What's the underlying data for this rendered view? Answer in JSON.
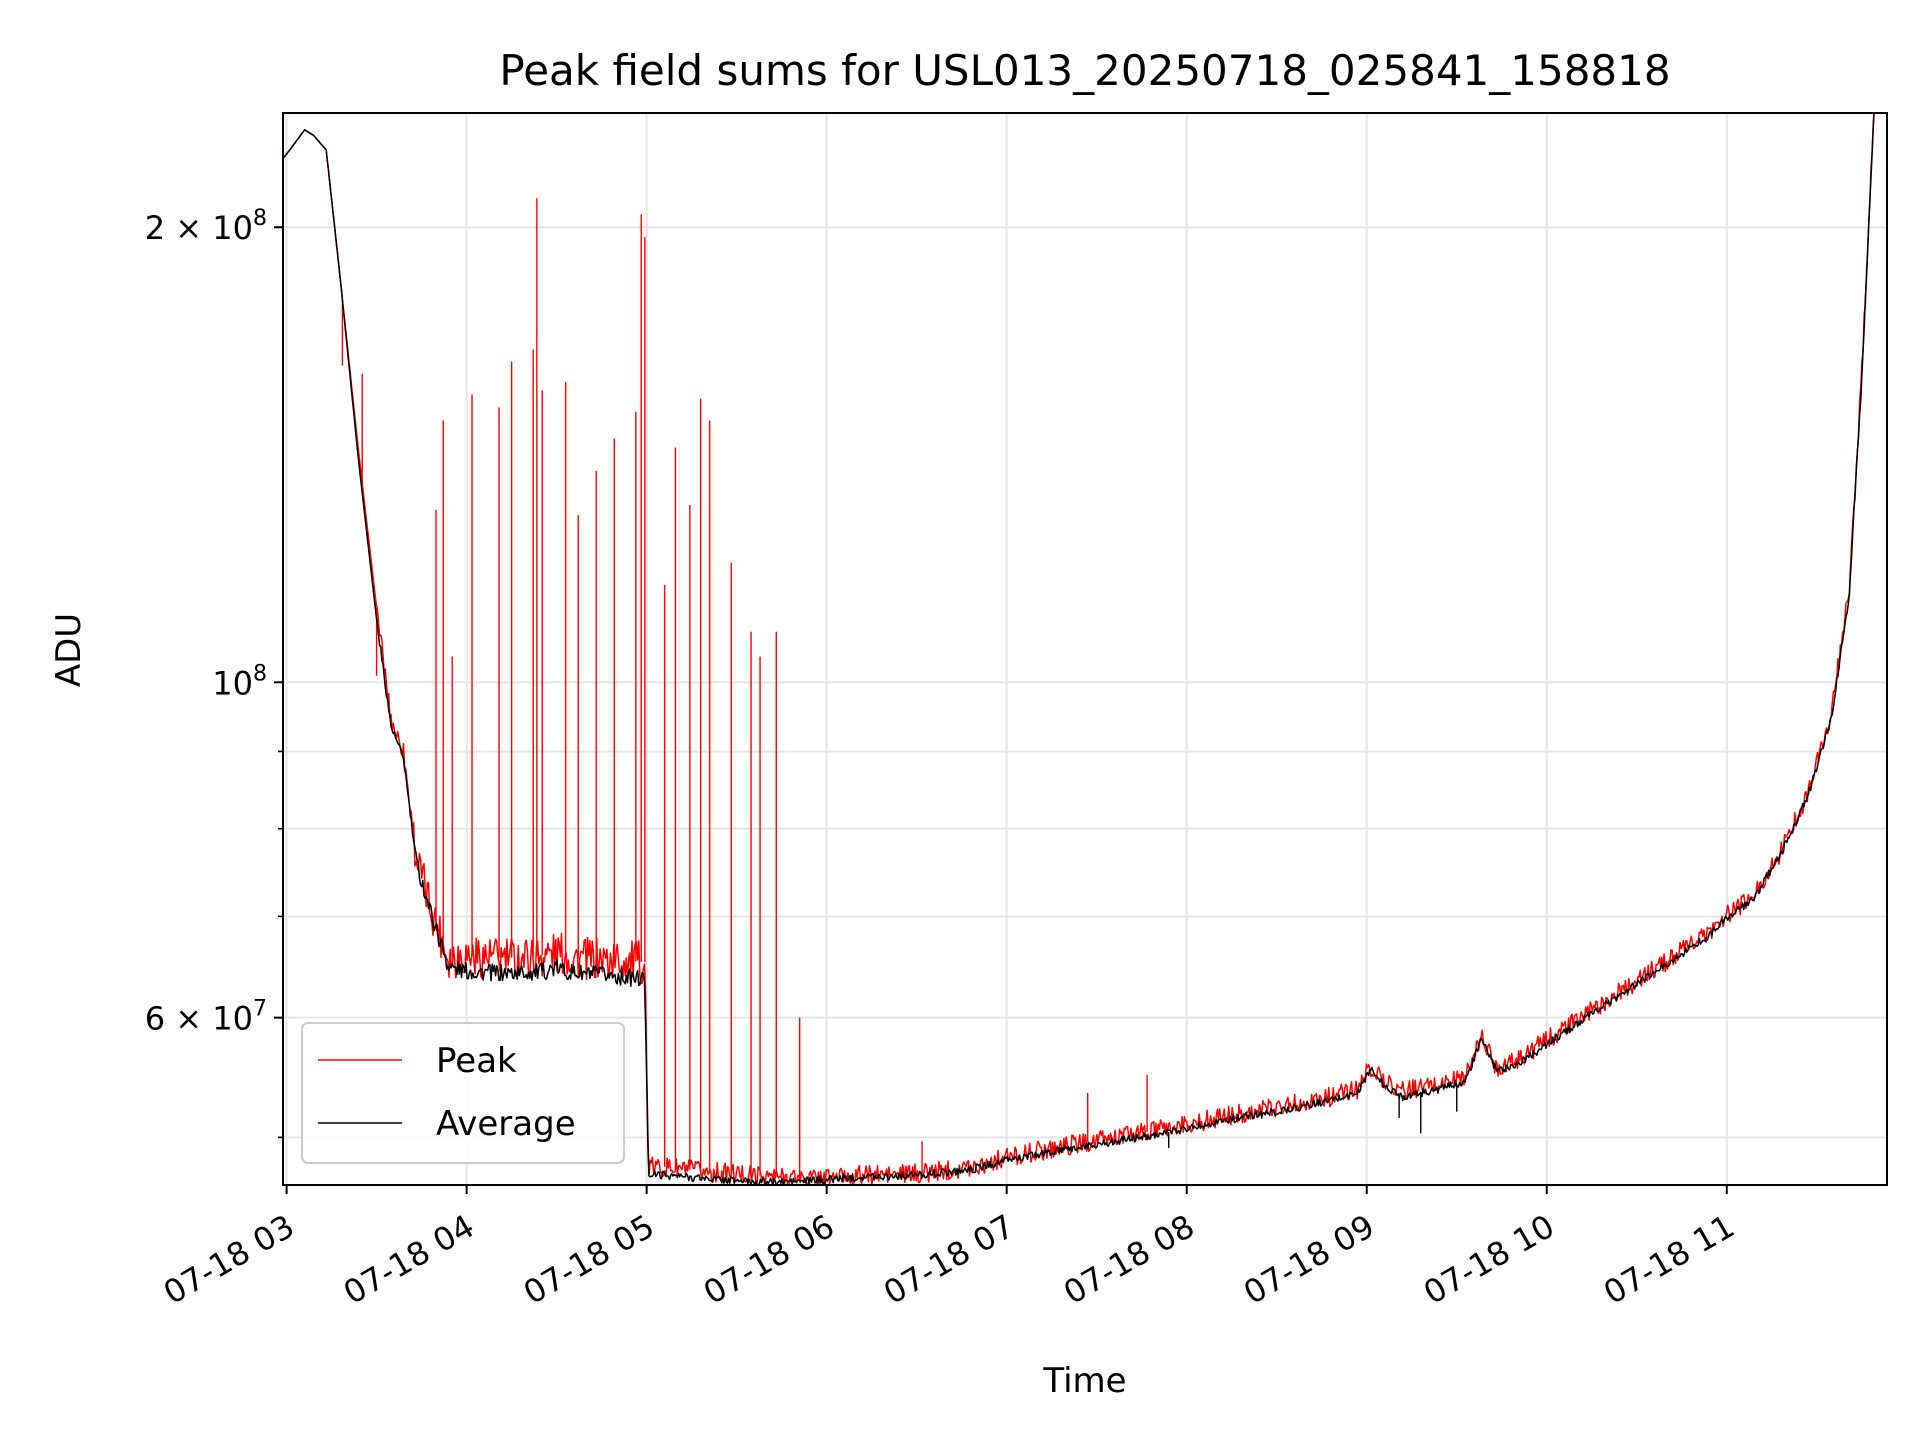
{
  "chart_data": {
    "type": "line",
    "title": "Peak field sums for USL013_20250718_025841_158818",
    "xlabel": "Time",
    "ylabel": "ADU",
    "yscale": "log",
    "ylim": [
      46500000,
      238000000
    ],
    "xlim_hours": [
      2.98,
      11.89
    ],
    "grid": true,
    "legend_position": "lower-left",
    "x_tick_labels": [
      "07-18 03",
      "07-18 04",
      "07-18 05",
      "07-18 06",
      "07-18 07",
      "07-18 08",
      "07-18 09",
      "07-18 10",
      "07-18 11"
    ],
    "x_tick_hours": [
      3,
      4,
      5,
      6,
      7,
      8,
      9,
      10,
      11
    ],
    "y_major_ticks": [
      {
        "value": 200000000,
        "base": "2 × 10",
        "exp": "8"
      },
      {
        "value": 100000000,
        "base": "10",
        "exp": "8"
      },
      {
        "value": 60000000,
        "base": "6 × 10",
        "exp": "7"
      }
    ],
    "y_minor_ticks": [
      50000000,
      70000000,
      80000000,
      90000000
    ],
    "colors": {
      "peak": "#ff0000",
      "average": "#000000",
      "grid": "#e6e6e6"
    },
    "series": [
      {
        "name": "Peak",
        "color": "#ff0000",
        "x_hours": [
          2.98,
          3.03,
          3.1,
          3.15,
          3.22,
          3.3,
          3.4,
          3.5,
          3.58,
          3.65,
          3.72,
          3.8,
          3.9,
          4.0,
          4.2,
          4.4,
          4.5,
          4.6,
          4.8,
          4.99,
          5.01,
          5.1,
          5.3,
          5.5,
          5.7,
          5.9,
          6.2,
          6.5,
          6.8,
          7.0,
          7.3,
          7.6,
          7.9,
          8.2,
          8.5,
          8.8,
          8.95,
          9.02,
          9.1,
          9.2,
          9.4,
          9.55,
          9.64,
          9.72,
          9.85,
          10.0,
          10.3,
          10.6,
          10.9,
          11.0,
          11.15,
          11.3,
          11.45,
          11.58,
          11.68,
          11.75,
          11.82
        ],
        "y_adu": [
          222000000,
          226000000,
          232000000,
          230000000,
          225000000,
          184000000,
          142000000,
          112000000,
          94500000,
          90000000,
          76500000,
          71000000,
          65800000,
          66000000,
          65700000,
          65900000,
          66300000,
          65700000,
          65500000,
          65300000,
          47800000,
          47800000,
          47500000,
          47300000,
          47100000,
          47000000,
          47200000,
          47300000,
          47800000,
          48500000,
          49300000,
          50000000,
          50700000,
          51600000,
          52400000,
          53200000,
          53800000,
          55700000,
          54500000,
          53700000,
          54200000,
          54900000,
          58300000,
          55600000,
          56400000,
          58000000,
          61200000,
          64600000,
          68300000,
          70100000,
          72200000,
          77300000,
          84500000,
          95000000,
          115000000,
          160000000,
          242000000
        ],
        "spikes": [
          {
            "x_hour": 3.31,
            "y_adu": 162000000
          },
          {
            "x_hour": 3.42,
            "y_adu": 160000000
          },
          {
            "x_hour": 3.5,
            "y_adu": 101000000
          },
          {
            "x_hour": 3.83,
            "y_adu": 130000000
          },
          {
            "x_hour": 3.87,
            "y_adu": 149000000
          },
          {
            "x_hour": 3.92,
            "y_adu": 104000000
          },
          {
            "x_hour": 4.03,
            "y_adu": 155000000
          },
          {
            "x_hour": 4.18,
            "y_adu": 152000000
          },
          {
            "x_hour": 4.25,
            "y_adu": 163000000
          },
          {
            "x_hour": 4.37,
            "y_adu": 166000000
          },
          {
            "x_hour": 4.39,
            "y_adu": 209000000
          },
          {
            "x_hour": 4.42,
            "y_adu": 156000000
          },
          {
            "x_hour": 4.55,
            "y_adu": 158000000
          },
          {
            "x_hour": 4.62,
            "y_adu": 129000000
          },
          {
            "x_hour": 4.72,
            "y_adu": 138000000
          },
          {
            "x_hour": 4.82,
            "y_adu": 145000000
          },
          {
            "x_hour": 4.94,
            "y_adu": 151000000
          },
          {
            "x_hour": 4.97,
            "y_adu": 204000000
          },
          {
            "x_hour": 4.99,
            "y_adu": 197000000
          },
          {
            "x_hour": 5.1,
            "y_adu": 116000000
          },
          {
            "x_hour": 5.16,
            "y_adu": 143000000
          },
          {
            "x_hour": 5.24,
            "y_adu": 131000000
          },
          {
            "x_hour": 5.3,
            "y_adu": 154000000
          },
          {
            "x_hour": 5.35,
            "y_adu": 149000000
          },
          {
            "x_hour": 5.47,
            "y_adu": 120000000
          },
          {
            "x_hour": 5.58,
            "y_adu": 108000000
          },
          {
            "x_hour": 5.63,
            "y_adu": 104000000
          },
          {
            "x_hour": 5.72,
            "y_adu": 108000000
          },
          {
            "x_hour": 5.85,
            "y_adu": 60000000
          },
          {
            "x_hour": 6.53,
            "y_adu": 49700000
          },
          {
            "x_hour": 7.45,
            "y_adu": 53500000
          },
          {
            "x_hour": 7.78,
            "y_adu": 55000000
          },
          {
            "x_hour": 8.23,
            "y_adu": 52000000
          },
          {
            "x_hour": 10.65,
            "y_adu": 65800000
          }
        ]
      },
      {
        "name": "Average",
        "color": "#000000",
        "x_hours": [
          2.98,
          3.03,
          3.1,
          3.15,
          3.22,
          3.3,
          3.4,
          3.5,
          3.58,
          3.65,
          3.72,
          3.8,
          3.9,
          4.0,
          4.2,
          4.4,
          4.5,
          4.6,
          4.8,
          4.99,
          5.01,
          5.1,
          5.3,
          5.5,
          5.7,
          5.9,
          6.2,
          6.5,
          6.8,
          7.0,
          7.3,
          7.6,
          7.9,
          8.2,
          8.5,
          8.8,
          8.95,
          9.02,
          9.1,
          9.2,
          9.4,
          9.55,
          9.64,
          9.72,
          9.85,
          10.0,
          10.3,
          10.6,
          10.9,
          11.0,
          11.15,
          11.3,
          11.45,
          11.58,
          11.68,
          11.75,
          11.82
        ],
        "y_adu": [
          222000000,
          226000000,
          232000000,
          230000000,
          225000000,
          184000000,
          140000000,
          110000000,
          93500000,
          89000000,
          76000000,
          70500000,
          64800000,
          64400000,
          64200000,
          64300000,
          64700000,
          64200000,
          64000000,
          63600000,
          47300000,
          47200000,
          47000000,
          46800000,
          46700000,
          46800000,
          47100000,
          47200000,
          47600000,
          48300000,
          49000000,
          49700000,
          50400000,
          51300000,
          52000000,
          52900000,
          53500000,
          55500000,
          54000000,
          53200000,
          53800000,
          54500000,
          58100000,
          55300000,
          56000000,
          57600000,
          60900000,
          64300000,
          68000000,
          69800000,
          71900000,
          77000000,
          84000000,
          94500000,
          114000000,
          159000000,
          242000000
        ],
        "dips": [
          {
            "x_hour": 9.18,
            "y_adu": 51500000
          },
          {
            "x_hour": 9.3,
            "y_adu": 50300000
          },
          {
            "x_hour": 9.5,
            "y_adu": 52000000
          },
          {
            "x_hour": 7.9,
            "y_adu": 49200000
          }
        ]
      }
    ]
  }
}
